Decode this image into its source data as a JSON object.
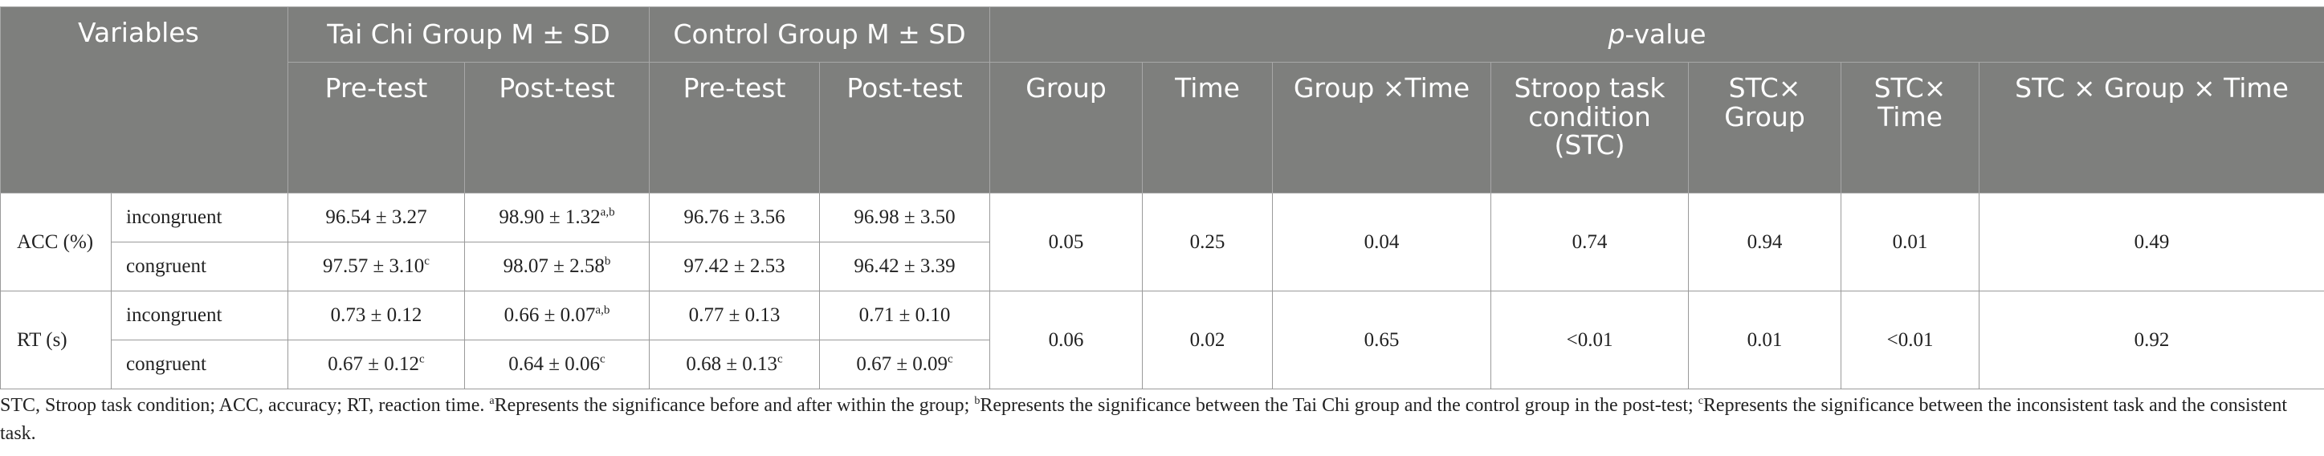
{
  "header": {
    "variables": "Variables",
    "tai_chi_group": "Tai Chi Group M ± SD",
    "control_group": "Control Group M ± SD",
    "p_value_italic": "p",
    "p_value_rest": "-value",
    "pre_test": "Pre-test",
    "post_test": "Post-test",
    "p_columns": [
      "Group",
      "Time",
      "Group ×Time",
      "Stroop task condition (STC)",
      "STC× Group",
      "STC× Time",
      "STC × Group × Time"
    ]
  },
  "rows": {
    "acc": {
      "label": "ACC (%)",
      "incongruent": {
        "label": "incongruent",
        "tc_pre": "96.54 ± 3.27",
        "tc_post": "98.90 ± 1.32",
        "tc_post_sup": "a,b",
        "ctrl_pre": "96.76 ± 3.56",
        "ctrl_post": "96.98 ± 3.50"
      },
      "congruent": {
        "label": "congruent",
        "tc_pre": "97.57 ± 3.10",
        "tc_pre_sup": "c",
        "tc_post": "98.07 ± 2.58",
        "tc_post_sup": "b",
        "ctrl_pre": "97.42 ± 2.53",
        "ctrl_post": "96.42 ± 3.39"
      },
      "p": [
        "0.05",
        "0.25",
        "0.04",
        "0.74",
        "0.94",
        "0.01",
        "0.49"
      ]
    },
    "rt": {
      "label": "RT (s)",
      "incongruent": {
        "label": "incongruent",
        "tc_pre": "0.73 ± 0.12",
        "tc_post": "0.66 ± 0.07",
        "tc_post_sup": "a,b",
        "ctrl_pre": "0.77 ± 0.13",
        "ctrl_post": "0.71 ± 0.10"
      },
      "congruent": {
        "label": "congruent",
        "tc_pre": "0.67 ± 0.12",
        "tc_pre_sup": "c",
        "tc_post": "0.64 ± 0.06",
        "tc_post_sup": "c",
        "ctrl_pre": "0.68 ± 0.13",
        "ctrl_pre_sup": "c",
        "ctrl_post": "0.67 ± 0.09",
        "ctrl_post_sup": "c"
      },
      "p": [
        "0.06",
        "0.02",
        "0.65",
        "<0.01",
        "0.01",
        "<0.01",
        "0.92"
      ]
    }
  },
  "footnote": {
    "abbrev": "STC, Stroop task condition; ACC, accuracy; RT, reaction time. ",
    "a_mark": "a",
    "a_text": "Represents the significance before and after within the group; ",
    "b_mark": "b",
    "b_text": "Represents the significance between the Tai Chi group and the control group in the post-test; ",
    "c_mark": "c",
    "c_text": "Represents the significance between the inconsistent task and the consistent task."
  }
}
